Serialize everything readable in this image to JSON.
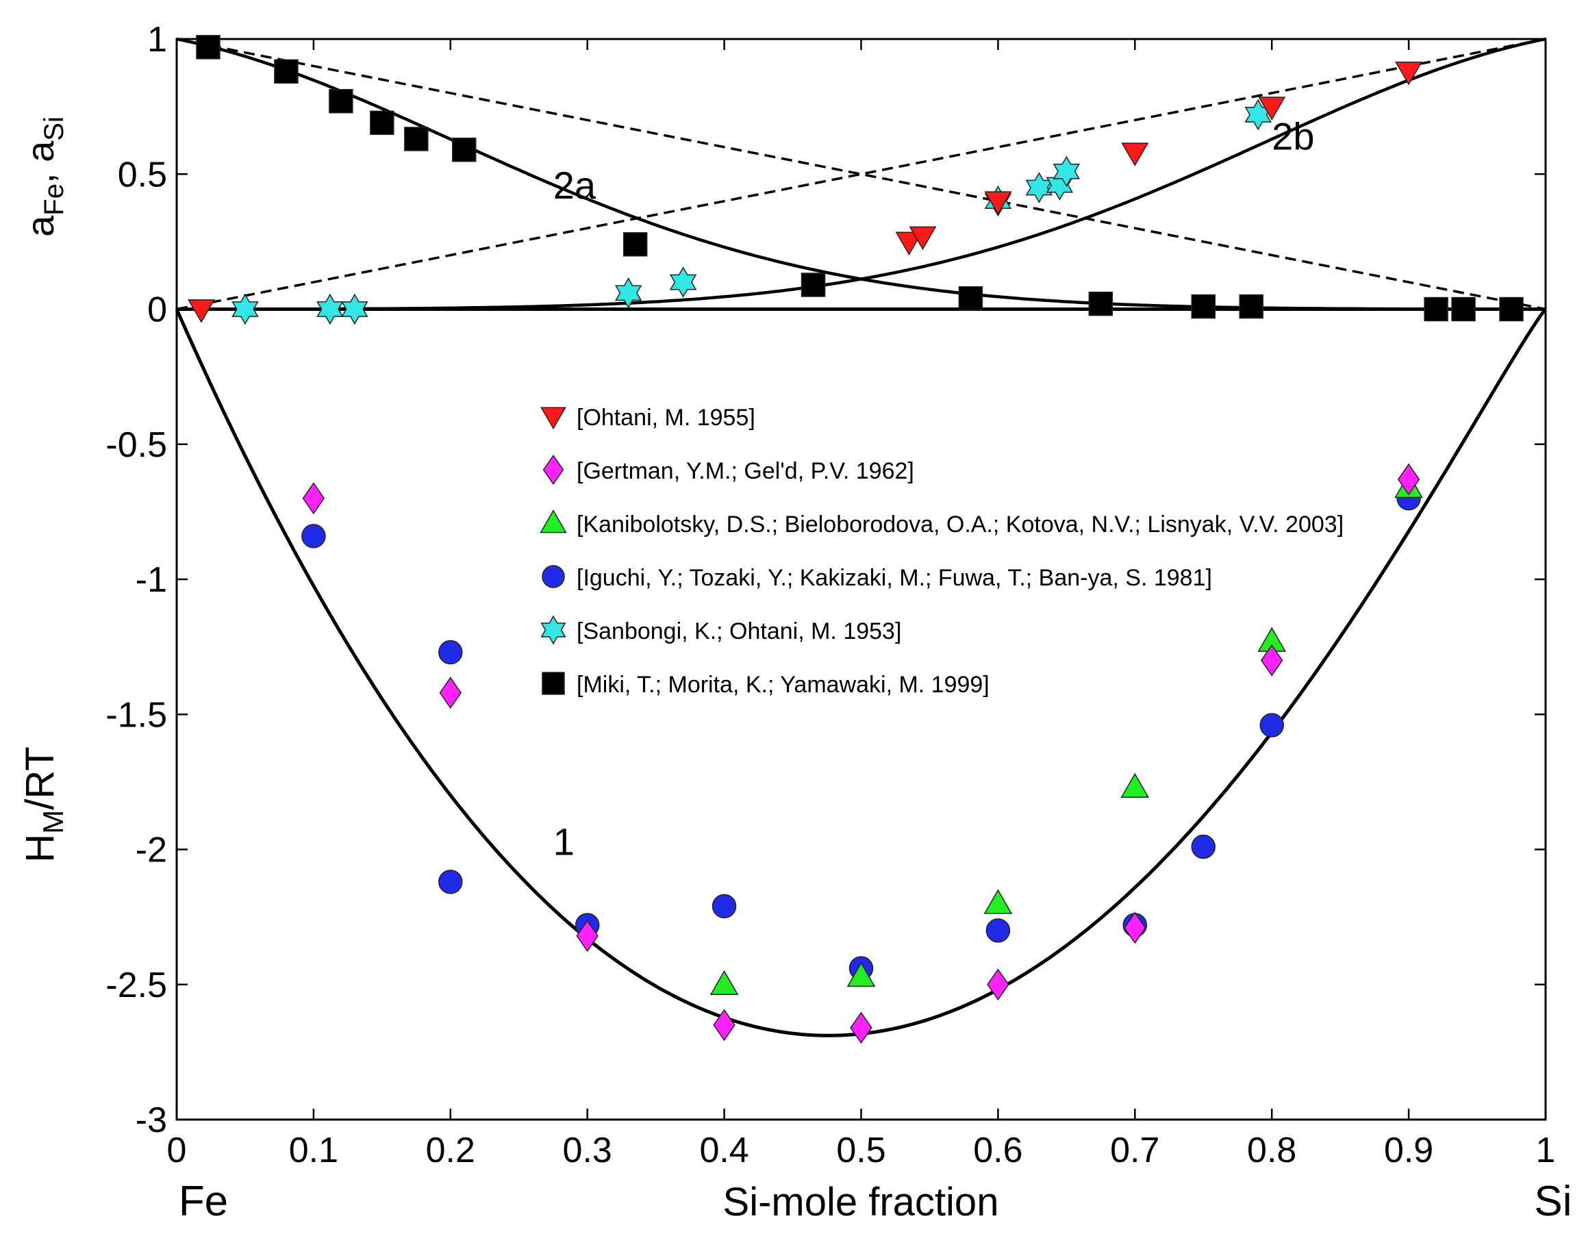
{
  "chart_data": {
    "type": "scatter",
    "xlabel": "Si-mole fraction",
    "ylabel_upper": {
      "main": "a",
      "sub1": "Fe",
      "sep": ", a",
      "sub2": "Si"
    },
    "ylabel_lower": {
      "main": "H",
      "sub": "M",
      "rest": "/RT"
    },
    "x_end_labels": {
      "left": "Fe",
      "right": "Si"
    },
    "xlim": [
      0,
      1
    ],
    "ylim": [
      -3,
      1
    ],
    "x_ticks": [
      "0",
      "0.1",
      "0.2",
      "0.3",
      "0.4",
      "0.5",
      "0.6",
      "0.7",
      "0.8",
      "0.9",
      "1"
    ],
    "y_ticks": [
      "-3",
      "-2.5",
      "-2",
      "-1.5",
      "-1",
      "-0.5",
      "0",
      "0.5",
      "1"
    ],
    "curve_labels": [
      {
        "id": "curve-1",
        "text": "1",
        "x": 0.275,
        "y": -2.02
      },
      {
        "id": "curve-2a",
        "text": "2a",
        "x": 0.275,
        "y": 0.41
      },
      {
        "id": "curve-2b",
        "text": "2b",
        "x": 0.8,
        "y": 0.59
      }
    ],
    "curves": {
      "enthalpy_1": "H_M/RT = -11.5 x (1-x)^1.1 (theoretical, curve 1)",
      "activity_Fe_2a": "a_Fe model (curve 2a)",
      "activity_Si_2b": "a_Si model (curve 2b)",
      "ideal_Fe": "a_Fe = 1 - x (dashed)",
      "ideal_Si": "a_Si = x (dashed)"
    },
    "series": [
      {
        "name": "[Ohtani, M. 1955]",
        "marker": "triangle-down",
        "color": "#ff1a1a",
        "points": [
          [
            0.018,
            0.0
          ],
          [
            0.535,
            0.25
          ],
          [
            0.545,
            0.27
          ],
          [
            0.6,
            0.4
          ],
          [
            0.7,
            0.58
          ],
          [
            0.8,
            0.75
          ],
          [
            0.9,
            0.88
          ]
        ]
      },
      {
        "name": "[Gertman, Y.M.; Gel'd, P.V. 1962]",
        "marker": "diamond",
        "color": "#ff22ff",
        "points": [
          [
            0.1,
            -0.7
          ],
          [
            0.2,
            -1.42
          ],
          [
            0.3,
            -2.32
          ],
          [
            0.4,
            -2.65
          ],
          [
            0.5,
            -2.66
          ],
          [
            0.6,
            -2.5
          ],
          [
            0.7,
            -2.29
          ],
          [
            0.8,
            -1.3
          ],
          [
            0.9,
            -0.63
          ]
        ]
      },
      {
        "name": "[Kanibolotsky, D.S.; Bieloborodova, O.A.; Kotova, N.V.; Lisnyak, V.V.  2003]",
        "marker": "triangle-up",
        "color": "#22ee22",
        "points": [
          [
            0.4,
            -2.5
          ],
          [
            0.5,
            -2.47
          ],
          [
            0.6,
            -2.2
          ],
          [
            0.7,
            -1.77
          ],
          [
            0.8,
            -1.23
          ],
          [
            0.9,
            -0.66
          ]
        ]
      },
      {
        "name": "[Iguchi, Y.; Tozaki, Y.; Kakizaki, M.; Fuwa, T.; Ban-ya, S. 1981]",
        "marker": "circle",
        "color": "#1f2be6",
        "points": [
          [
            0.1,
            -0.84
          ],
          [
            0.2,
            -1.27
          ],
          [
            0.2,
            -2.12
          ],
          [
            0.3,
            -2.28
          ],
          [
            0.4,
            -2.21
          ],
          [
            0.5,
            -2.44
          ],
          [
            0.6,
            -2.3
          ],
          [
            0.7,
            -2.28
          ],
          [
            0.75,
            -1.99
          ],
          [
            0.8,
            -1.54
          ],
          [
            0.9,
            -0.7
          ]
        ]
      },
      {
        "name": "[Sanbongi, K.; Ohtani, M.  1953]",
        "marker": "star",
        "color": "#33e6e6",
        "points": [
          [
            0.05,
            0.0
          ],
          [
            0.112,
            0.0
          ],
          [
            0.13,
            0.0
          ],
          [
            0.33,
            0.06
          ],
          [
            0.37,
            0.1
          ],
          [
            0.6,
            0.4
          ],
          [
            0.63,
            0.45
          ],
          [
            0.645,
            0.46
          ],
          [
            0.65,
            0.51
          ],
          [
            0.79,
            0.72
          ]
        ]
      },
      {
        "name": "[Miki, T.; Morita, K.; Yamawaki, M.  1999]",
        "marker": "square",
        "color": "#000000",
        "points": [
          [
            0.023,
            0.97
          ],
          [
            0.08,
            0.88
          ],
          [
            0.12,
            0.77
          ],
          [
            0.15,
            0.69
          ],
          [
            0.175,
            0.63
          ],
          [
            0.21,
            0.59
          ],
          [
            0.335,
            0.24
          ],
          [
            0.465,
            0.09
          ],
          [
            0.58,
            0.04
          ],
          [
            0.675,
            0.02
          ],
          [
            0.75,
            0.01
          ],
          [
            0.785,
            0.01
          ],
          [
            0.92,
            0.0
          ],
          [
            0.94,
            0.0
          ],
          [
            0.975,
            0.0
          ]
        ]
      }
    ],
    "legend_position": "center"
  }
}
